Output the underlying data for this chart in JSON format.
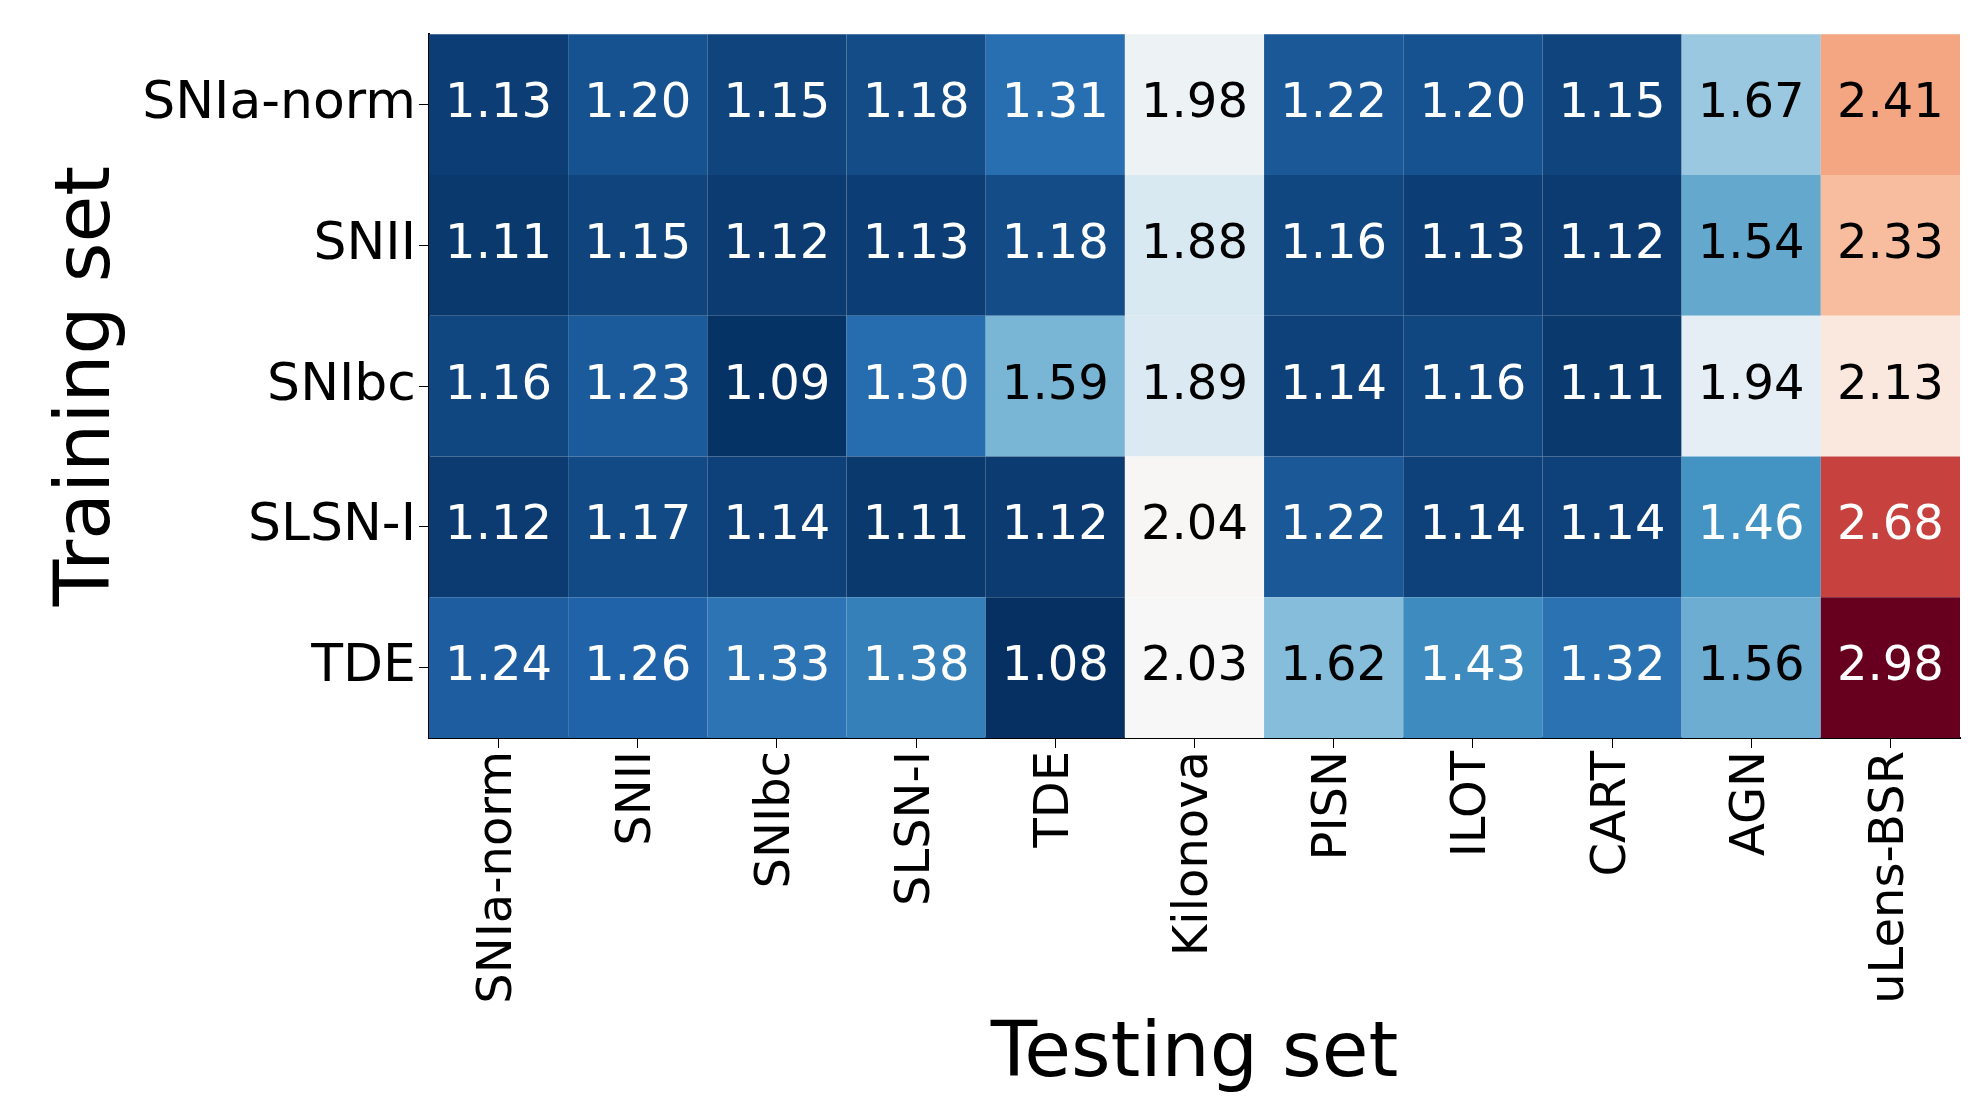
{
  "chart_data": {
    "type": "heatmap",
    "xlabel": "Testing set",
    "ylabel": "Training set",
    "categories": [
      "SNIa-norm",
      "SNII",
      "SNIbc",
      "SLSN-I",
      "TDE",
      "Kilonova",
      "PISN",
      "ILOT",
      "CART",
      "AGN",
      "uLens-BSR"
    ],
    "y_categories": [
      "SNIa-norm",
      "SNII",
      "SNIbc",
      "SLSN-I",
      "TDE"
    ],
    "cells": [
      [
        1.13,
        1.2,
        1.15,
        1.18,
        1.31,
        1.98,
        1.22,
        1.2,
        1.15,
        1.67,
        2.41
      ],
      [
        1.11,
        1.15,
        1.12,
        1.13,
        1.18,
        1.88,
        1.16,
        1.13,
        1.12,
        1.54,
        2.33
      ],
      [
        1.16,
        1.23,
        1.09,
        1.3,
        1.59,
        1.89,
        1.14,
        1.16,
        1.11,
        1.94,
        2.13
      ],
      [
        1.12,
        1.17,
        1.14,
        1.11,
        1.12,
        2.04,
        1.22,
        1.14,
        1.14,
        1.46,
        2.68
      ],
      [
        1.24,
        1.26,
        1.33,
        1.38,
        1.08,
        2.03,
        1.62,
        1.43,
        1.32,
        1.56,
        2.98
      ]
    ],
    "cell_labels": [
      [
        "1.13",
        "1.20",
        "1.15",
        "1.18",
        "1.31",
        "1.98",
        "1.22",
        "1.20",
        "1.15",
        "1.67",
        "2.41"
      ],
      [
        "1.11",
        "1.15",
        "1.12",
        "1.13",
        "1.18",
        "1.88",
        "1.16",
        "1.13",
        "1.12",
        "1.54",
        "2.33"
      ],
      [
        "1.16",
        "1.23",
        "1.09",
        "1.30",
        "1.59",
        "1.89",
        "1.14",
        "1.16",
        "1.11",
        "1.94",
        "2.13"
      ],
      [
        "1.12",
        "1.17",
        "1.14",
        "1.11",
        "1.12",
        "2.04",
        "1.22",
        "1.14",
        "1.14",
        "1.46",
        "2.68"
      ],
      [
        "1.24",
        "1.26",
        "1.33",
        "1.38",
        "1.08",
        "2.03",
        "1.62",
        "1.43",
        "1.32",
        "1.56",
        "2.98"
      ]
    ],
    "data_labels": true
  }
}
